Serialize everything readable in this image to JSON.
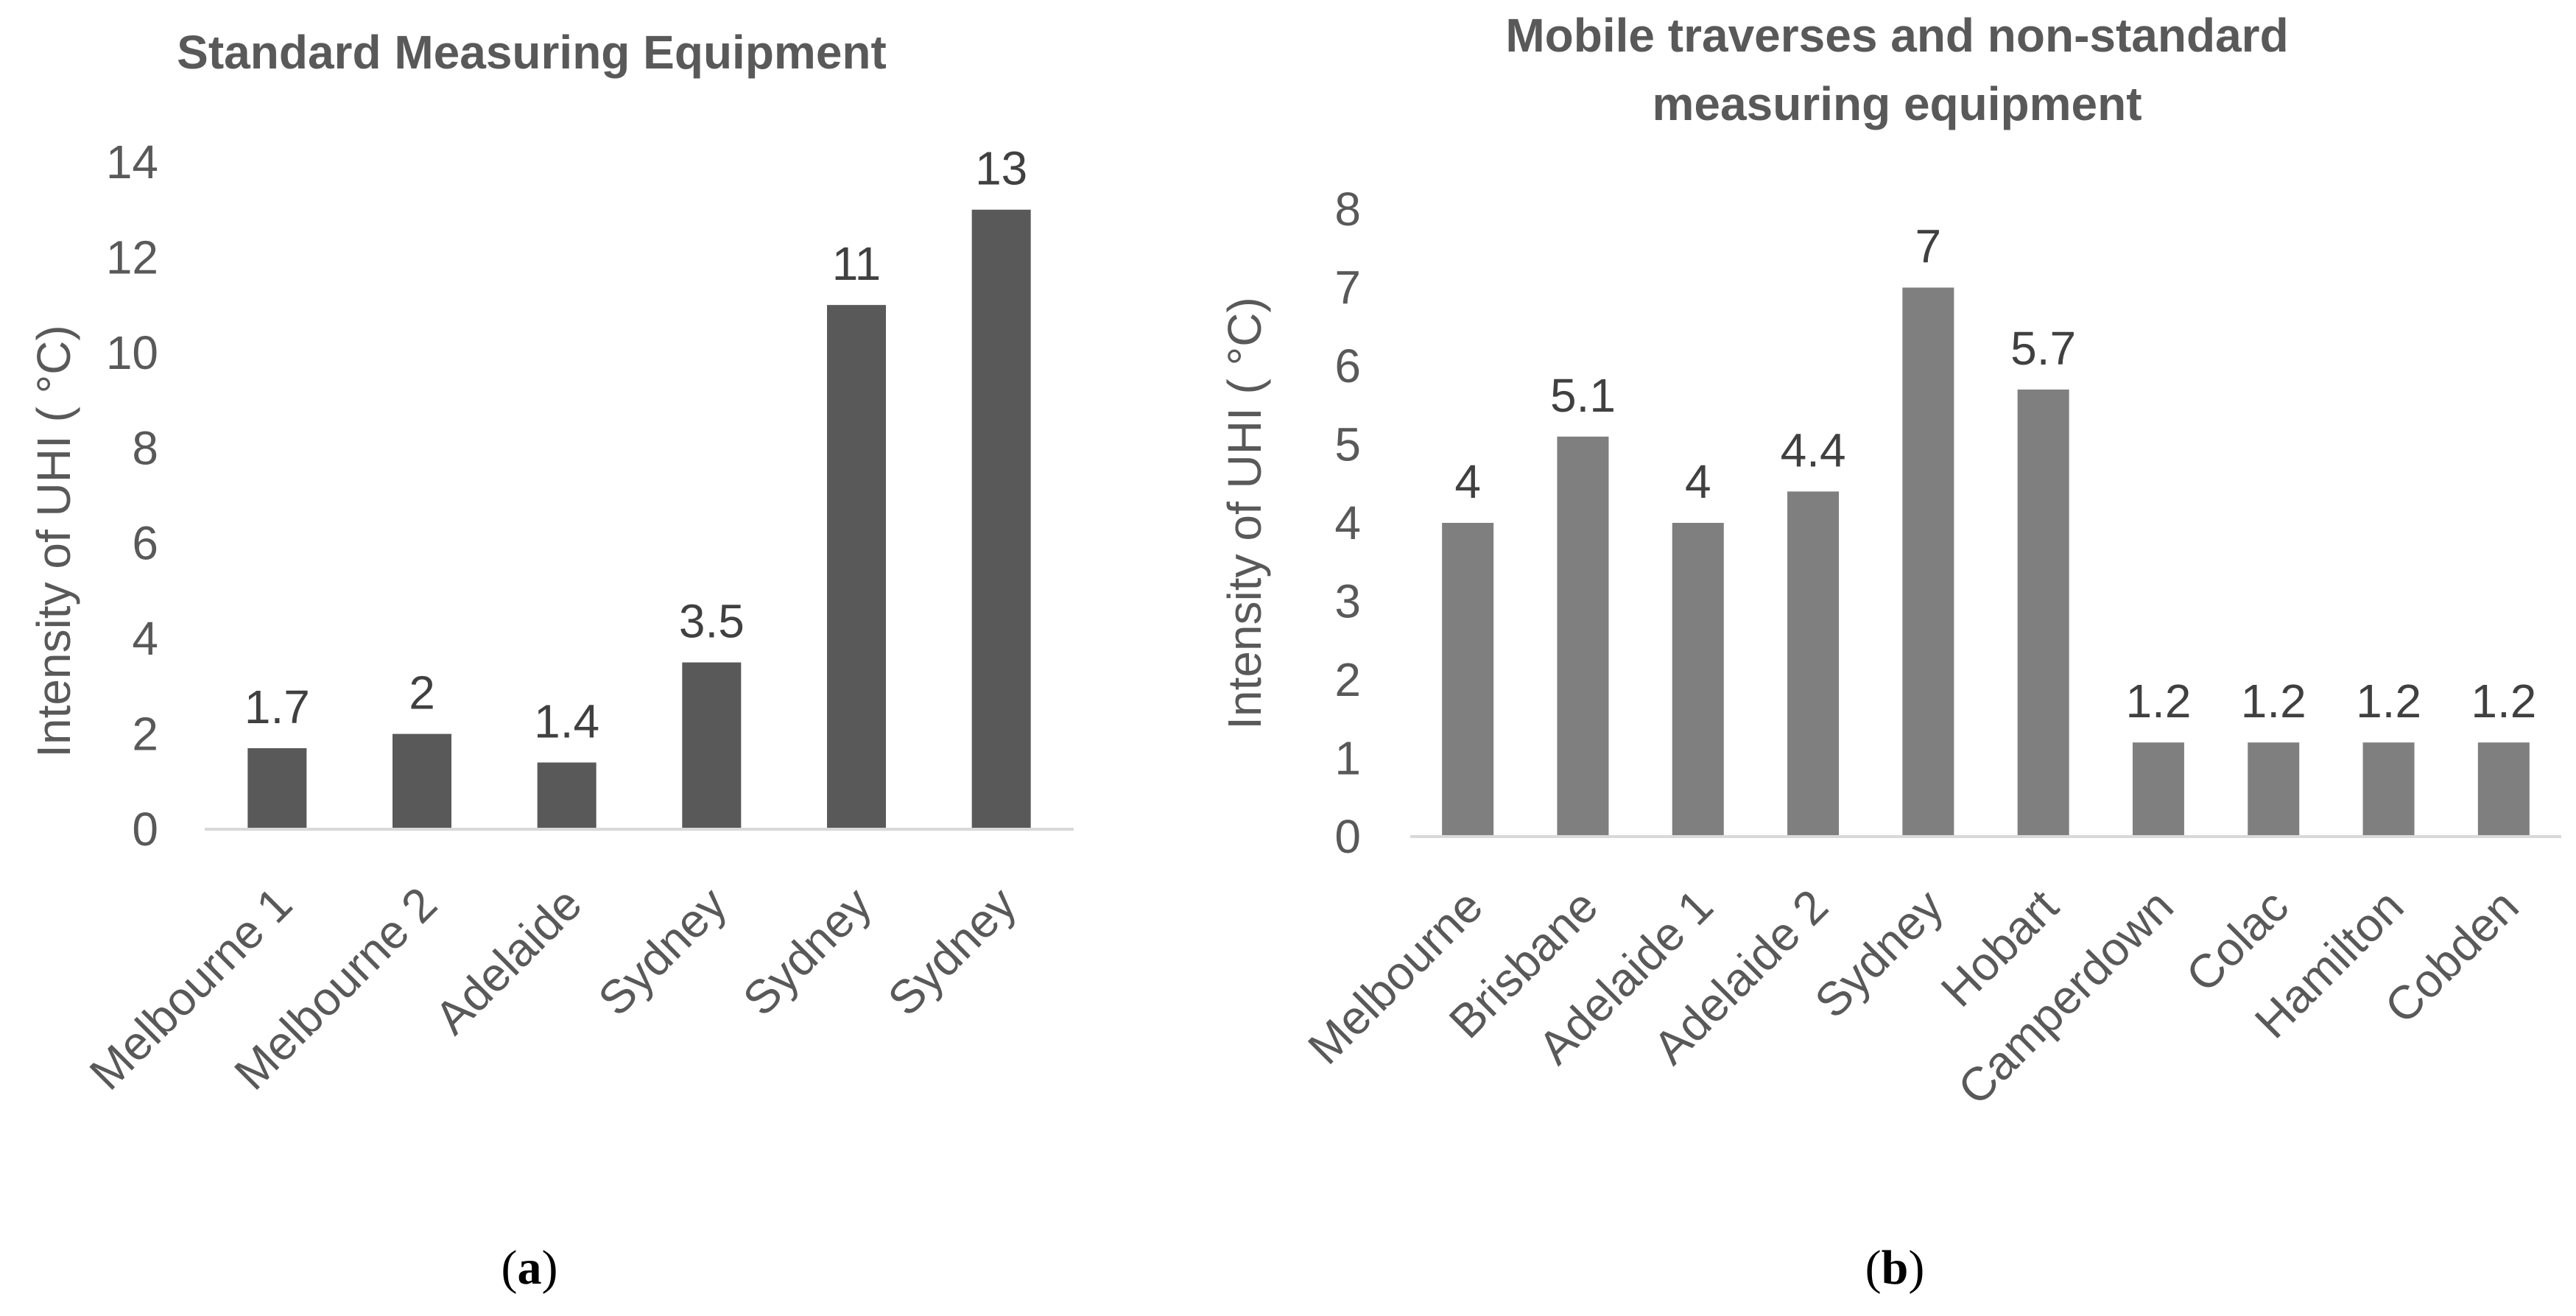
{
  "chart_data": [
    {
      "type": "bar",
      "title": "Standard Measuring Equipment",
      "panel_label": "a",
      "ylabel": "Intensity of UHI ( °C)",
      "xlabel": "",
      "categories": [
        "Melbourne 1",
        "Melbourne 2",
        "Adelaide",
        "Sydney",
        "Sydney",
        "Sydney"
      ],
      "values": [
        1.7,
        2,
        1.4,
        3.5,
        11,
        13
      ],
      "data_labels": [
        "1.7",
        "2",
        "1.4",
        "3.5",
        "11",
        "13"
      ],
      "ylim": [
        0,
        14
      ],
      "yticks": [
        "0",
        "2",
        "4",
        "6",
        "8",
        "10",
        "12",
        "14"
      ],
      "grid": false,
      "color": "#595959"
    },
    {
      "type": "bar",
      "title_lines": [
        "Mobile traverses and non-standard",
        "measuring equipment"
      ],
      "panel_label": "b",
      "ylabel": "Intensity of UHI ( °C)",
      "xlabel": "",
      "categories": [
        "Melbourne",
        "Brisbane",
        "Adelaide 1",
        "Adelaide 2",
        "Sydney",
        "Hobart",
        "Camperdown",
        "Colac",
        "Hamilton",
        "Cobden"
      ],
      "values": [
        4,
        5.1,
        4,
        4.4,
        7,
        5.7,
        1.2,
        1.2,
        1.2,
        1.2
      ],
      "data_labels": [
        "4",
        "5.1",
        "4",
        "4.4",
        "7",
        "5.7",
        "1.2",
        "1.2",
        "1.2",
        "1.2"
      ],
      "ylim": [
        0,
        8
      ],
      "yticks": [
        "0",
        "1",
        "2",
        "3",
        "4",
        "5",
        "6",
        "7",
        "8"
      ],
      "grid": false,
      "color": "#7f7f7f"
    }
  ]
}
